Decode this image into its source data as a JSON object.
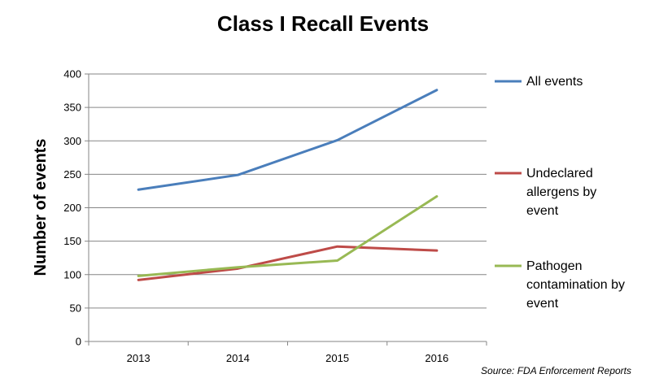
{
  "chart_data": {
    "type": "line",
    "title": "Class I Recall Events",
    "xlabel": "",
    "ylabel": "Number of events",
    "categories": [
      "2013",
      "2014",
      "2015",
      "2016"
    ],
    "ylim": [
      0,
      400
    ],
    "yticks": [
      0,
      50,
      100,
      150,
      200,
      250,
      300,
      350,
      400
    ],
    "grid": "horizontal",
    "legend_position": "right",
    "series": [
      {
        "name": "All events",
        "color": "#4a7ebb",
        "values": [
          227,
          249,
          301,
          376
        ],
        "legend_lines": [
          "All events"
        ]
      },
      {
        "name": "Undeclared allergens by event",
        "color": "#be4b48",
        "values": [
          92,
          109,
          142,
          136
        ],
        "legend_lines": [
          "Undeclared",
          "allergens by",
          "event"
        ]
      },
      {
        "name": "Pathogen contamination by event",
        "color": "#98b954",
        "values": [
          98,
          111,
          121,
          217
        ],
        "legend_lines": [
          "Pathogen",
          "contamination by",
          "event"
        ]
      }
    ],
    "source": "Source: FDA Enforcement Reports"
  }
}
